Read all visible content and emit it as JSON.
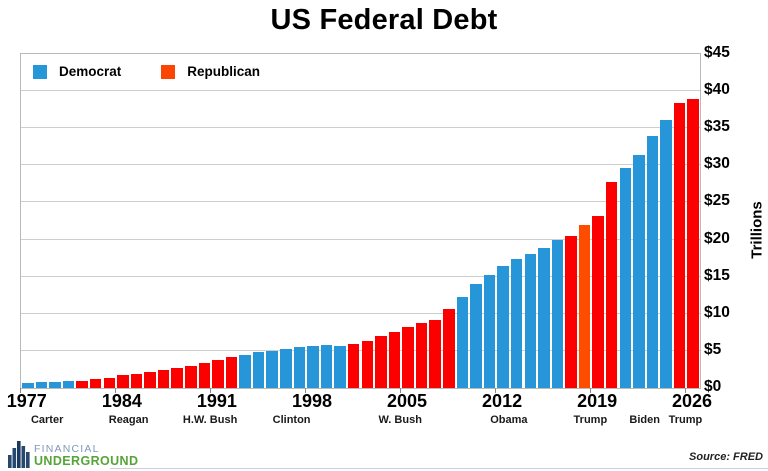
{
  "title": "US Federal Debt",
  "legend": {
    "democrat": "Democrat",
    "republican": "Republican"
  },
  "colors": {
    "democrat": "#2796D8",
    "republican_bar": "#FC0000",
    "republican_legend": "#FB4505",
    "republican_accent_bar": "#FF4D00",
    "gridline": "#cecece",
    "frame": "#b9b9b9"
  },
  "y_axis": {
    "unit_label": "Trillions",
    "tick_labels": [
      "$0",
      "$5",
      "$10",
      "$15",
      "$20",
      "$25",
      "$30",
      "$35",
      "$40",
      "$45"
    ],
    "min": 0,
    "max": 45,
    "step": 5
  },
  "x_axis": {
    "tick_years": [
      1977,
      1984,
      1991,
      1998,
      2005,
      2012,
      2019,
      2026
    ],
    "presidents": [
      {
        "name": "Carter",
        "start": 1977,
        "end": 1980
      },
      {
        "name": "Reagan",
        "start": 1981,
        "end": 1988
      },
      {
        "name": "H.W. Bush",
        "start": 1989,
        "end": 1992
      },
      {
        "name": "Clinton",
        "start": 1993,
        "end": 2000
      },
      {
        "name": "W. Bush",
        "start": 2001,
        "end": 2008
      },
      {
        "name": "Obama",
        "start": 2009,
        "end": 2016
      },
      {
        "name": "Trump",
        "start": 2017,
        "end": 2020
      },
      {
        "name": "Biden",
        "start": 2021,
        "end": 2024
      },
      {
        "name": "Trump",
        "start": 2025,
        "end": 2026
      }
    ]
  },
  "chart_data": {
    "type": "bar",
    "title": "US Federal Debt",
    "ylabel": "Trillions",
    "ylim": [
      0,
      45
    ],
    "grid": "horizontal",
    "legend_position": "top-left",
    "start_year": 1977,
    "end_year": 2026,
    "values": [
      0.7,
      0.8,
      0.8,
      0.9,
      1.0,
      1.2,
      1.4,
      1.7,
      1.9,
      2.2,
      2.4,
      2.7,
      3.0,
      3.4,
      3.8,
      4.2,
      4.5,
      4.8,
      5.0,
      5.3,
      5.5,
      5.6,
      5.8,
      5.7,
      5.9,
      6.4,
      7.0,
      7.6,
      8.2,
      8.7,
      9.2,
      10.7,
      12.3,
      14.0,
      15.2,
      16.4,
      17.4,
      18.1,
      18.9,
      20.0,
      20.5,
      22.0,
      23.2,
      27.7,
      29.6,
      31.4,
      34.0,
      36.1,
      38.4,
      38.9
    ],
    "parties": "DDDDRRRRRRRRRRRRDDDDDDDDRRRRRRRRDDDDDDDDRRRRDDDDRR",
    "accent_year": 2018,
    "series_note": "US federal debt in trillions of dollars per year, colored by party of the president"
  },
  "footer": {
    "source": "Source: FRED",
    "logo_line1": "FINANCIAL",
    "logo_line2": "UNDERGROUND"
  }
}
